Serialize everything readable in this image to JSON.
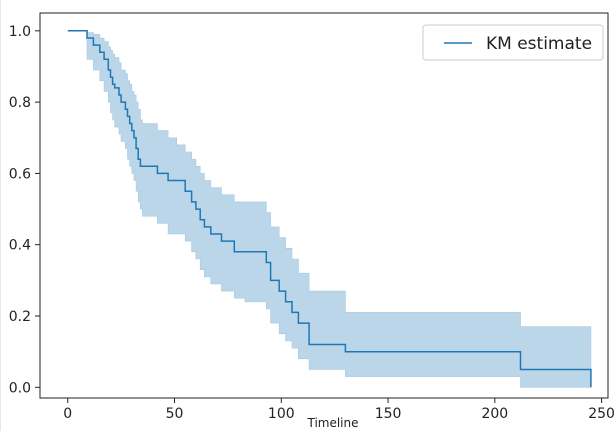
{
  "chart_data": {
    "type": "line",
    "xlabel": "Timeline",
    "ylabel": "",
    "xlim": [
      -13,
      253
    ],
    "ylim": [
      -0.03,
      1.05
    ],
    "xticks": [
      0,
      50,
      100,
      150,
      200,
      250
    ],
    "yticks": [
      0.0,
      0.2,
      0.4,
      0.6,
      0.8,
      1.0
    ],
    "ytick_labels": [
      "0.0",
      "0.2",
      "0.4",
      "0.6",
      "0.8",
      "1.0"
    ],
    "legend": {
      "position": "top-right",
      "entries": [
        "KM  estimate"
      ]
    },
    "colors": {
      "line": "#1f77b4",
      "band": "#a6c8e2"
    },
    "series": [
      {
        "name": "KM  estimate",
        "step": "post",
        "x": [
          0,
          9,
          12,
          15,
          17,
          19,
          20,
          21,
          22,
          24,
          25,
          27,
          28,
          29,
          30,
          31,
          32,
          33,
          34,
          35,
          42,
          47,
          51,
          55,
          58,
          60,
          62,
          64,
          67,
          72,
          78,
          83,
          93,
          95,
          99,
          102,
          105,
          108,
          113,
          130,
          212,
          245
        ],
        "values": [
          1.0,
          0.98,
          0.96,
          0.94,
          0.92,
          0.89,
          0.87,
          0.85,
          0.84,
          0.82,
          0.8,
          0.78,
          0.76,
          0.74,
          0.72,
          0.7,
          0.67,
          0.64,
          0.62,
          0.62,
          0.6,
          0.58,
          0.58,
          0.55,
          0.52,
          0.5,
          0.47,
          0.45,
          0.43,
          0.41,
          0.38,
          0.38,
          0.35,
          0.3,
          0.27,
          0.24,
          0.21,
          0.18,
          0.12,
          0.1,
          0.05,
          0.0
        ],
        "ci_lower": [
          1.0,
          0.92,
          0.89,
          0.86,
          0.83,
          0.8,
          0.77,
          0.75,
          0.73,
          0.71,
          0.69,
          0.67,
          0.64,
          0.62,
          0.6,
          0.58,
          0.55,
          0.52,
          0.5,
          0.48,
          0.46,
          0.43,
          0.43,
          0.41,
          0.38,
          0.36,
          0.33,
          0.31,
          0.29,
          0.27,
          0.25,
          0.24,
          0.22,
          0.18,
          0.15,
          0.13,
          0.11,
          0.08,
          0.05,
          0.03,
          0.0,
          0.0
        ],
        "ci_upper": [
          1.0,
          0.995,
          0.99,
          0.98,
          0.97,
          0.955,
          0.945,
          0.935,
          0.925,
          0.91,
          0.89,
          0.88,
          0.86,
          0.85,
          0.83,
          0.82,
          0.8,
          0.78,
          0.75,
          0.74,
          0.72,
          0.7,
          0.68,
          0.66,
          0.64,
          0.62,
          0.6,
          0.58,
          0.56,
          0.54,
          0.52,
          0.52,
          0.49,
          0.45,
          0.42,
          0.39,
          0.36,
          0.32,
          0.27,
          0.21,
          0.17,
          0.17
        ]
      }
    ]
  }
}
